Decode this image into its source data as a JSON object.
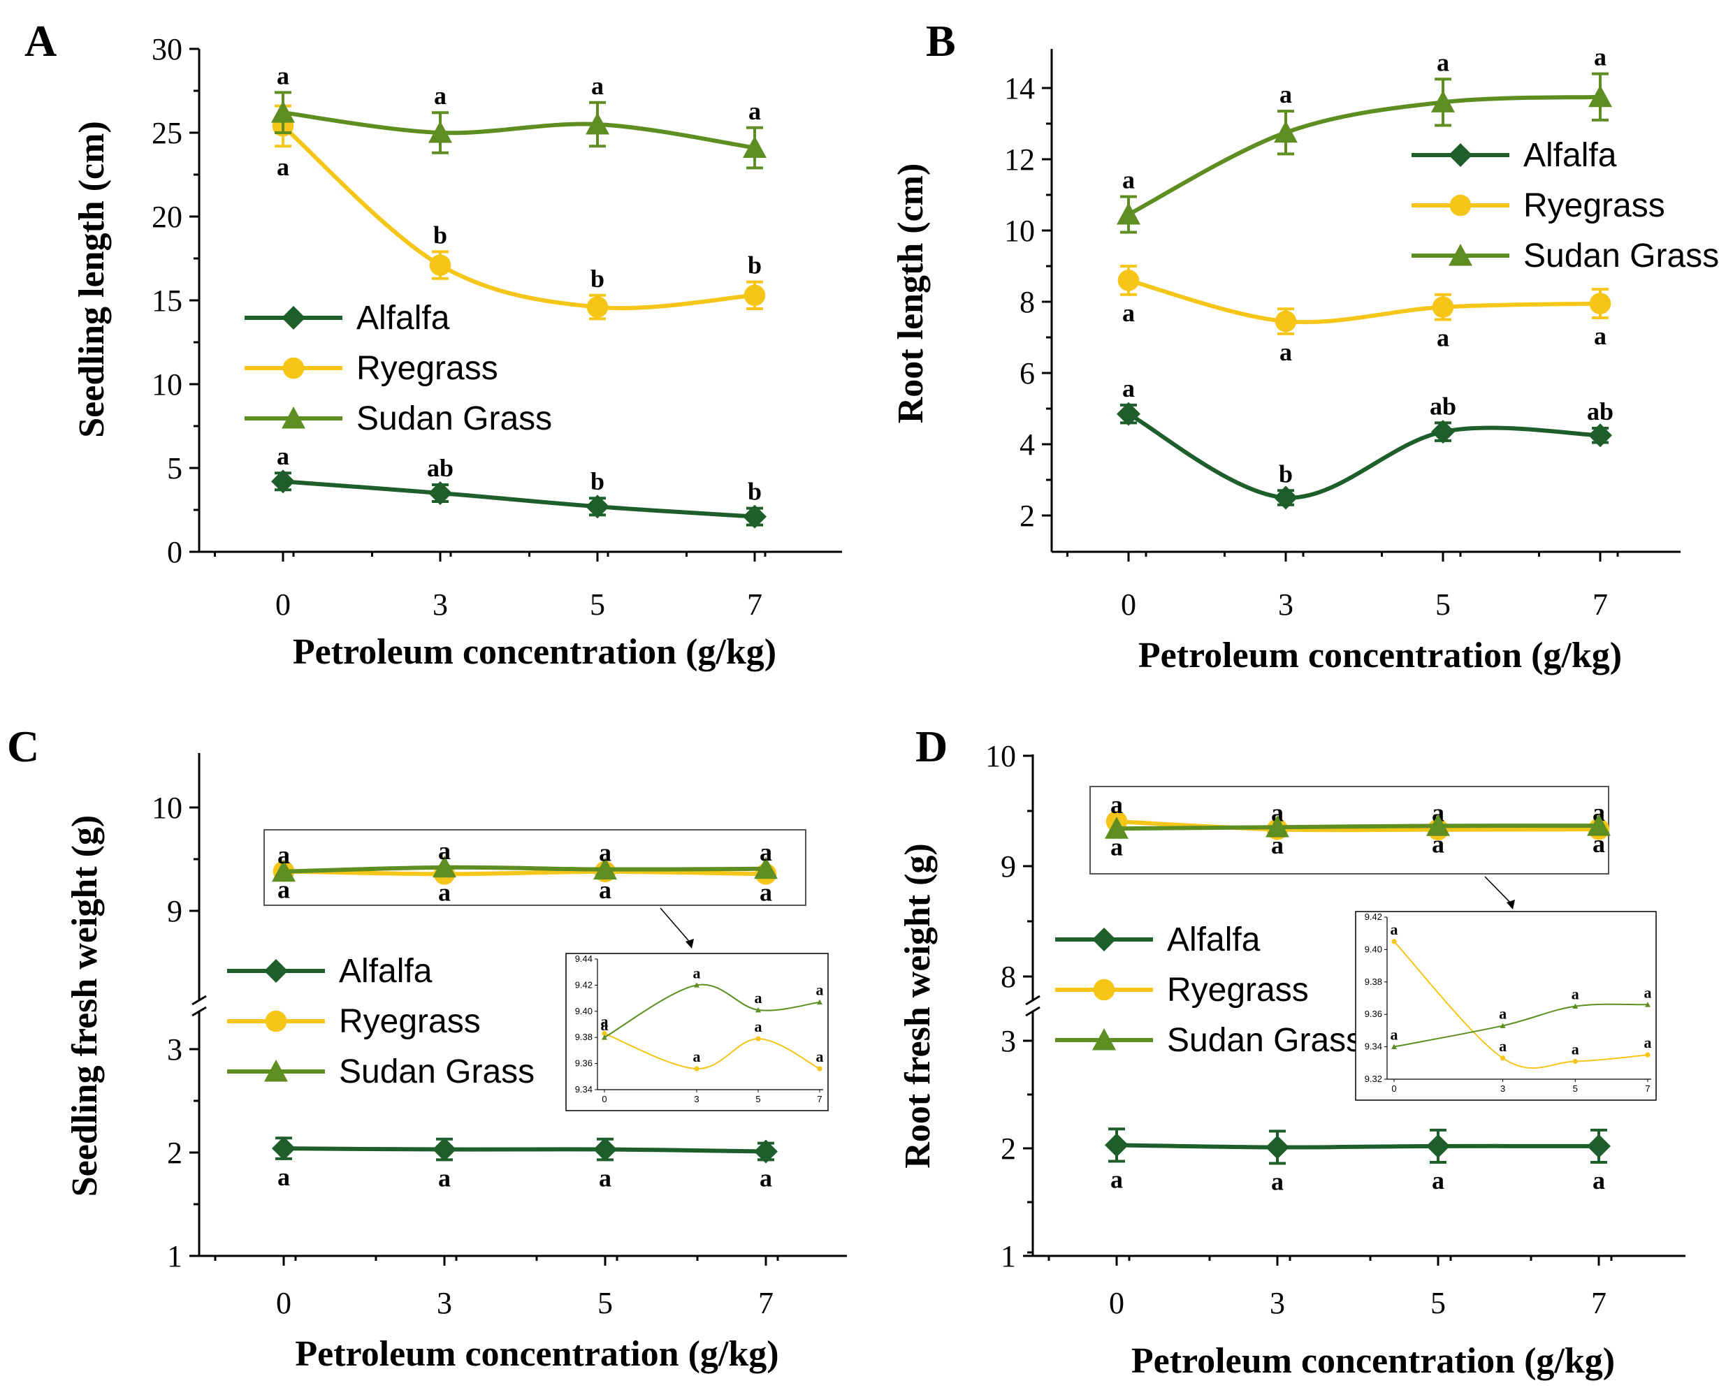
{
  "figure": {
    "series_names": [
      "Alfalfa",
      "Ryegrass",
      "Sudan Grass"
    ],
    "colors": {
      "Alfalfa": "#1d5e2a",
      "Ryegrass": "#f5c518",
      "Sudan Grass": "#5e8e21"
    },
    "markers": {
      "Alfalfa": "diamond",
      "Ryegrass": "circle",
      "Sudan Grass": "triangle"
    }
  },
  "chart_data": [
    {
      "panel": "A",
      "type": "line",
      "xlabel": "Petroleum concentration (g/kg)",
      "ylabel": "Seedling length (cm)",
      "categories": [
        "0",
        "3",
        "5",
        "7"
      ],
      "ylim": [
        0,
        30
      ],
      "yticks": [
        0,
        5,
        10,
        15,
        20,
        25,
        30
      ],
      "legend": "middle-left",
      "series": [
        {
          "name": "Alfalfa",
          "values": [
            4.2,
            3.5,
            2.7,
            2.1
          ],
          "err": [
            0.5,
            0.5,
            0.5,
            0.5
          ],
          "labels": [
            "a",
            "ab",
            "b",
            "b"
          ],
          "label_pos": [
            "above",
            "above",
            "above",
            "above"
          ]
        },
        {
          "name": "Ryegrass",
          "values": [
            25.4,
            17.1,
            14.6,
            15.3
          ],
          "err": [
            1.2,
            0.8,
            0.7,
            0.8
          ],
          "labels": [
            "a",
            "b",
            "b",
            "b"
          ],
          "label_pos": [
            "below",
            "above",
            "above",
            "above"
          ]
        },
        {
          "name": "Sudan Grass",
          "values": [
            26.2,
            25.0,
            25.5,
            24.1
          ],
          "err": [
            1.2,
            1.2,
            1.3,
            1.2
          ],
          "labels": [
            "a",
            "a",
            "a",
            "a"
          ],
          "label_pos": [
            "above",
            "above",
            "above",
            "above"
          ]
        }
      ]
    },
    {
      "panel": "B",
      "type": "line",
      "xlabel": "Petroleum concentration  (g/kg)",
      "ylabel": "Root length  (cm)",
      "categories": [
        "0",
        "3",
        "5",
        "7"
      ],
      "ylim": [
        1,
        15
      ],
      "yticks": [
        2,
        4,
        6,
        8,
        10,
        12,
        14
      ],
      "legend": "top-right",
      "series": [
        {
          "name": "Alfalfa",
          "values": [
            4.85,
            2.5,
            4.35,
            4.25
          ],
          "err": [
            0.25,
            0.2,
            0.25,
            0.2
          ],
          "labels": [
            "a",
            "b",
            "ab",
            "ab"
          ],
          "label_pos": [
            "above",
            "above",
            "above",
            "above"
          ]
        },
        {
          "name": "Ryegrass",
          "values": [
            8.6,
            7.45,
            7.85,
            7.95
          ],
          "err": [
            0.4,
            0.35,
            0.35,
            0.4
          ],
          "labels": [
            "a",
            "a",
            "a",
            "a"
          ],
          "label_pos": [
            "below",
            "below",
            "below",
            "below"
          ]
        },
        {
          "name": "Sudan Grass",
          "values": [
            10.45,
            12.75,
            13.6,
            13.75
          ],
          "err": [
            0.5,
            0.6,
            0.65,
            0.65
          ],
          "labels": [
            "a",
            "a",
            "a",
            "a"
          ],
          "label_pos": [
            "above",
            "above",
            "above",
            "above"
          ]
        }
      ]
    },
    {
      "panel": "C",
      "type": "line",
      "xlabel": "Petroleum concentration  (g/kg)",
      "ylabel": "Seedling fresh weight (g)",
      "categories": [
        "0",
        "3",
        "5",
        "7"
      ],
      "y_break": {
        "lower": [
          1,
          3.1
        ],
        "upper": [
          7.8,
          10.5
        ]
      },
      "yticks": [
        1,
        2,
        3,
        9,
        10
      ],
      "legend": "middle-left",
      "series": [
        {
          "name": "Alfalfa",
          "values": [
            2.04,
            2.03,
            2.03,
            2.01
          ],
          "err": [
            0.1,
            0.1,
            0.1,
            0.08
          ],
          "labels": [
            "a",
            "a",
            "a",
            "a"
          ],
          "label_pos": [
            "below",
            "below",
            "below",
            "below"
          ]
        },
        {
          "name": "Ryegrass",
          "values": [
            9.383,
            9.356,
            9.379,
            9.356
          ],
          "labels": [
            "a",
            "a",
            "a",
            "a"
          ],
          "label_pos": [
            "below",
            "below",
            "below",
            "below"
          ]
        },
        {
          "name": "Sudan Grass",
          "values": [
            9.38,
            9.42,
            9.401,
            9.407
          ],
          "labels": [
            "a",
            "a",
            "a",
            "a"
          ],
          "label_pos": [
            "above",
            "above",
            "above",
            "above"
          ]
        }
      ],
      "inset": {
        "ylim": [
          9.34,
          9.44
        ],
        "yticks": [
          "9.34",
          "9.36",
          "9.38",
          "9.40",
          "9.42",
          "9.44"
        ],
        "xticks": [
          "0",
          "3",
          "5",
          "7"
        ]
      }
    },
    {
      "panel": "D",
      "type": "line",
      "xlabel": "Petroleum concentration  (g/kg)",
      "ylabel": "Root fresh weight (g)",
      "categories": [
        "0",
        "3",
        "5",
        "7"
      ],
      "y_break": {
        "lower": [
          1,
          3
        ],
        "upper": [
          7.5,
          10
        ]
      },
      "yticks": [
        1,
        2,
        3,
        8,
        9,
        10
      ],
      "legend": "middle-left",
      "series": [
        {
          "name": "Alfalfa",
          "values": [
            2.03,
            2.01,
            2.02,
            2.02
          ],
          "err": [
            0.15,
            0.15,
            0.15,
            0.15
          ],
          "labels": [
            "a",
            "a",
            "a",
            "a"
          ],
          "label_pos": [
            "below",
            "below",
            "below",
            "below"
          ]
        },
        {
          "name": "Ryegrass",
          "values": [
            9.405,
            9.333,
            9.331,
            9.335
          ],
          "labels": [
            "a",
            "a",
            "a",
            "a"
          ],
          "label_pos": [
            "above",
            "above",
            "above",
            "above"
          ]
        },
        {
          "name": "Sudan Grass",
          "values": [
            9.34,
            9.353,
            9.365,
            9.366
          ],
          "labels": [
            "a",
            "a",
            "a",
            "a"
          ],
          "label_pos": [
            "below",
            "below",
            "below",
            "below"
          ]
        }
      ],
      "inset": {
        "ylim": [
          9.32,
          9.42
        ],
        "yticks": [
          "9.32",
          "9.34",
          "9.36",
          "9.38",
          "9.40",
          "9.42"
        ],
        "xticks": [
          "0",
          "3",
          "5",
          "7"
        ]
      }
    }
  ]
}
